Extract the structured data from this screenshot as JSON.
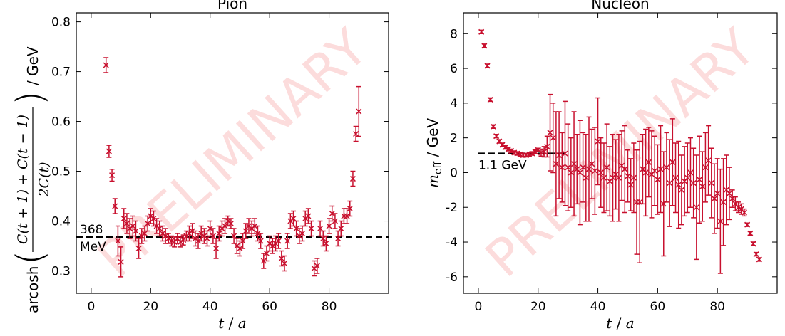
{
  "chart_data": [
    {
      "type": "errorbar",
      "title": "Pion",
      "xlabel": {
        "var": "t",
        "rest": " / ",
        "var2": "a"
      },
      "ylabel": {
        "func": "arcosh",
        "numerator": "C(t + 1) + C(t − 1)",
        "denominator": "2C(t)",
        "unit": "/ GeV"
      },
      "watermark": "PRELIMINARY",
      "color": "#c8102e",
      "xlim": [
        -5,
        100
      ],
      "xticks": [
        0,
        20,
        40,
        60,
        80
      ],
      "ylim": [
        0.255,
        0.818
      ],
      "yticks": [
        0.3,
        0.4,
        0.5,
        0.6,
        0.7,
        0.8
      ],
      "hline": {
        "value": 0.368,
        "label_lines": [
          "368",
          "MeV"
        ]
      },
      "x": [
        5,
        6,
        7,
        8,
        9,
        10,
        11,
        12,
        13,
        14,
        15,
        16,
        17,
        18,
        19,
        20,
        21,
        22,
        23,
        24,
        25,
        26,
        27,
        28,
        29,
        30,
        31,
        32,
        33,
        34,
        35,
        36,
        37,
        38,
        39,
        40,
        41,
        42,
        43,
        44,
        45,
        46,
        47,
        48,
        49,
        50,
        51,
        52,
        53,
        54,
        55,
        56,
        57,
        58,
        59,
        60,
        61,
        62,
        63,
        64,
        65,
        66,
        67,
        68,
        69,
        70,
        71,
        72,
        73,
        74,
        75,
        76,
        77,
        78,
        79,
        80,
        81,
        82,
        83,
        84,
        85,
        86,
        87,
        88,
        89,
        90
      ],
      "values": [
        0.713,
        0.54,
        0.492,
        0.43,
        0.36,
        0.318,
        0.405,
        0.395,
        0.385,
        0.39,
        0.38,
        0.345,
        0.37,
        0.375,
        0.395,
        0.41,
        0.405,
        0.39,
        0.385,
        0.375,
        0.37,
        0.365,
        0.36,
        0.358,
        0.365,
        0.358,
        0.362,
        0.37,
        0.375,
        0.38,
        0.365,
        0.36,
        0.375,
        0.37,
        0.365,
        0.385,
        0.37,
        0.345,
        0.375,
        0.385,
        0.39,
        0.4,
        0.395,
        0.37,
        0.35,
        0.345,
        0.36,
        0.38,
        0.39,
        0.385,
        0.39,
        0.375,
        0.36,
        0.32,
        0.335,
        0.355,
        0.35,
        0.355,
        0.36,
        0.325,
        0.315,
        0.36,
        0.4,
        0.405,
        0.385,
        0.37,
        0.375,
        0.405,
        0.41,
        0.385,
        0.305,
        0.31,
        0.385,
        0.365,
        0.355,
        0.39,
        0.415,
        0.4,
        0.365,
        0.385,
        0.41,
        0.41,
        0.425,
        0.485,
        0.575,
        0.62
      ],
      "errors": [
        0.015,
        0.012,
        0.012,
        0.015,
        0.03,
        0.03,
        0.02,
        0.02,
        0.02,
        0.02,
        0.02,
        0.02,
        0.015,
        0.015,
        0.015,
        0.015,
        0.015,
        0.015,
        0.015,
        0.015,
        0.015,
        0.01,
        0.01,
        0.01,
        0.01,
        0.01,
        0.01,
        0.01,
        0.015,
        0.015,
        0.015,
        0.015,
        0.015,
        0.015,
        0.015,
        0.015,
        0.015,
        0.02,
        0.015,
        0.015,
        0.015,
        0.01,
        0.01,
        0.015,
        0.015,
        0.015,
        0.015,
        0.015,
        0.015,
        0.015,
        0.015,
        0.015,
        0.015,
        0.015,
        0.015,
        0.015,
        0.015,
        0.015,
        0.015,
        0.015,
        0.015,
        0.015,
        0.015,
        0.015,
        0.015,
        0.015,
        0.015,
        0.015,
        0.015,
        0.015,
        0.015,
        0.015,
        0.015,
        0.015,
        0.015,
        0.015,
        0.015,
        0.015,
        0.015,
        0.015,
        0.015,
        0.015,
        0.015,
        0.015,
        0.015,
        0.05
      ]
    },
    {
      "type": "errorbar",
      "title": "Nucleon",
      "xlabel": {
        "var": "t",
        "rest": " / ",
        "var2": "a"
      },
      "ylabel": {
        "main": "m",
        "sub": "eff",
        "unit": " / GeV"
      },
      "watermark": "PRELIMINARY",
      "color": "#c8102e",
      "xlim": [
        -5,
        100
      ],
      "xticks": [
        0,
        20,
        40,
        60,
        80
      ],
      "ylim": [
        -6.95,
        9.2
      ],
      "yticks": [
        -6,
        -4,
        -2,
        0,
        2,
        4,
        6,
        8
      ],
      "hline": {
        "value": 1.1,
        "xrange": [
          0,
          30
        ],
        "label_lines": [
          "1.1 GeV"
        ]
      },
      "x": [
        1,
        2,
        3,
        4,
        5,
        6,
        7,
        8,
        9,
        10,
        11,
        12,
        13,
        14,
        15,
        16,
        17,
        18,
        19,
        20,
        21,
        22,
        23,
        24,
        25,
        26,
        27,
        28,
        29,
        30,
        31,
        32,
        33,
        34,
        35,
        36,
        37,
        38,
        39,
        40,
        41,
        42,
        43,
        44,
        45,
        46,
        47,
        48,
        49,
        50,
        51,
        52,
        53,
        54,
        55,
        56,
        57,
        58,
        59,
        60,
        61,
        62,
        63,
        64,
        65,
        66,
        67,
        68,
        69,
        70,
        71,
        72,
        73,
        74,
        75,
        76,
        77,
        78,
        79,
        80,
        81,
        82,
        83,
        84,
        85,
        86,
        87,
        88,
        89,
        90,
        91,
        92,
        93,
        94
      ],
      "values": [
        8.1,
        7.3,
        6.15,
        4.2,
        2.65,
        2.1,
        1.8,
        1.6,
        1.45,
        1.35,
        1.25,
        1.15,
        1.1,
        1.05,
        1.0,
        1.0,
        1.05,
        1.1,
        1.2,
        1.3,
        1.15,
        1.2,
        1.5,
        2.3,
        2.0,
        0.5,
        1.0,
        0.3,
        1.1,
        0.3,
        0.0,
        0.5,
        0.2,
        0.0,
        0.3,
        -0.3,
        0.2,
        0.5,
        0.1,
        1.8,
        0.0,
        -0.3,
        0.3,
        -0.5,
        -0.3,
        -0.1,
        -0.3,
        0.4,
        0.2,
        -0.2,
        -0.7,
        -0.3,
        -1.7,
        -1.7,
        0.2,
        0.0,
        0.6,
        -0.1,
        0.1,
        -0.4,
        0.2,
        -1.8,
        0.3,
        -0.6,
        0.6,
        -0.3,
        -0.7,
        -1.0,
        -0.5,
        -0.3,
        0.0,
        -0.6,
        -2.0,
        -0.4,
        -0.8,
        0.3,
        0.7,
        -0.6,
        -1.5,
        -1.2,
        -2.8,
        -1.7,
        -1.0,
        -1.2,
        -1.5,
        -1.8,
        -2.0,
        -2.1,
        -2.3,
        -3.0,
        -3.5,
        -4.1,
        -4.7,
        -5.0
      ],
      "errors": [
        0.1,
        0.1,
        0.1,
        0.1,
        0.1,
        0.1,
        0.1,
        0.1,
        0.1,
        0.1,
        0.1,
        0.1,
        0.1,
        0.1,
        0.1,
        0.1,
        0.1,
        0.1,
        0.1,
        0.1,
        0.2,
        0.3,
        0.6,
        2.2,
        2.0,
        3,
        2.5,
        2,
        3,
        2.5,
        2,
        3,
        2,
        3,
        2,
        2.5,
        3,
        2,
        2.5,
        2.5,
        2,
        2,
        2.5,
        2,
        2.5,
        2,
        2.5,
        2,
        2.5,
        1.5,
        1.5,
        2,
        3,
        3.5,
        2,
        2.5,
        2,
        2.5,
        2,
        2,
        2.5,
        3,
        2,
        2.5,
        2.5,
        2,
        2.5,
        2,
        2,
        2,
        2,
        2,
        3,
        2.5,
        2,
        2,
        2,
        2,
        2,
        2,
        3,
        2.5,
        2,
        1.5,
        0.5,
        0.4,
        0.3,
        0.3,
        0.2,
        0.1,
        0.1,
        0.1,
        0.1,
        0.1
      ]
    }
  ]
}
